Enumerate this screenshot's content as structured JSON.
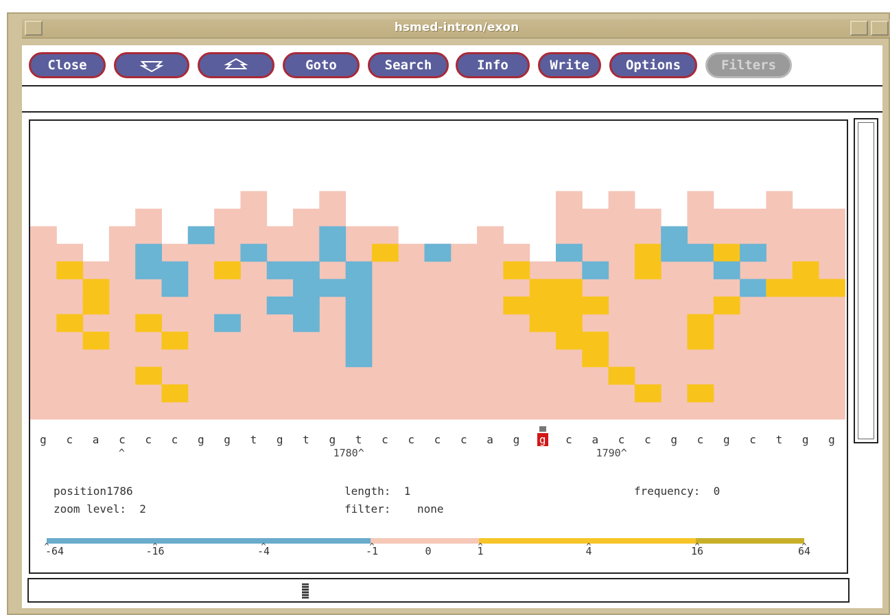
{
  "window": {
    "title": "hsmed-intron/exon"
  },
  "toolbar": {
    "buttons": [
      {
        "label": "Close",
        "icon": null,
        "enabled": true
      },
      {
        "label": "",
        "icon": "scroll-down-icon",
        "enabled": true
      },
      {
        "label": "",
        "icon": "scroll-up-icon",
        "enabled": true
      },
      {
        "label": "Goto",
        "icon": null,
        "enabled": true
      },
      {
        "label": "Search",
        "icon": null,
        "enabled": true
      },
      {
        "label": "Info",
        "icon": null,
        "enabled": true
      },
      {
        "label": "Write",
        "icon": null,
        "enabled": true
      },
      {
        "label": "Options",
        "icon": null,
        "enabled": true
      },
      {
        "label": "Filters",
        "icon": null,
        "enabled": false
      }
    ]
  },
  "sequence": {
    "bases": [
      "g",
      "c",
      "a",
      "c",
      "c",
      "c",
      "g",
      "g",
      "t",
      "g",
      "t",
      "g",
      "t",
      "c",
      "c",
      "c",
      "c",
      "a",
      "g",
      "g",
      "c",
      "a",
      "c",
      "c",
      "g",
      "c",
      "g",
      "c",
      "t",
      "g",
      "g"
    ],
    "selected_index": 19,
    "markers": [
      {
        "index": 3,
        "text": "^"
      },
      {
        "index": 12,
        "text": "1780^"
      },
      {
        "index": 22,
        "text": "1790^"
      }
    ]
  },
  "info": {
    "position_label": "position",
    "position_value": "1786",
    "zoom_label": "zoom level:",
    "zoom_value": "2",
    "length_label": "length:",
    "length_value": "1",
    "filter_label": "filter:",
    "filter_value": "none",
    "frequency_label": "frequency:",
    "frequency_value": "0"
  },
  "colorbar": {
    "ticks": [
      "-64",
      "-16",
      "-4",
      "-1",
      "0",
      "1",
      "4",
      "16",
      "64"
    ],
    "colors": {
      "negative": "#6aaccc",
      "neutral": "#f5c8b8",
      "positive": "#f7c52a",
      "high_positive": "#c8b02a"
    }
  },
  "heatmap": {
    "colors": {
      "neutral": "#f5c5b8",
      "negative": "#6ab4d4",
      "positive": "#f8c41c"
    },
    "column_tops": [
      6,
      7,
      8,
      6,
      5,
      7,
      6,
      5,
      4,
      6,
      5,
      4,
      6,
      6,
      7,
      7,
      7,
      6,
      7,
      8,
      4,
      5,
      4,
      5,
      6,
      4,
      5,
      5,
      4,
      5,
      5
    ],
    "cells": [
      {
        "c": 1,
        "r": 8,
        "v": "pos"
      },
      {
        "c": 2,
        "r": 9,
        "v": "pos"
      },
      {
        "c": 2,
        "r": 10,
        "v": "pos"
      },
      {
        "c": 1,
        "r": 11,
        "v": "pos"
      },
      {
        "c": 2,
        "r": 12,
        "v": "pos"
      },
      {
        "c": 4,
        "r": 7,
        "v": "neg"
      },
      {
        "c": 4,
        "r": 8,
        "v": "neg"
      },
      {
        "c": 5,
        "r": 8,
        "v": "neg"
      },
      {
        "c": 5,
        "r": 9,
        "v": "neg"
      },
      {
        "c": 4,
        "r": 11,
        "v": "pos"
      },
      {
        "c": 5,
        "r": 12,
        "v": "pos"
      },
      {
        "c": 4,
        "r": 14,
        "v": "pos"
      },
      {
        "c": 5,
        "r": 15,
        "v": "pos"
      },
      {
        "c": 6,
        "r": 6,
        "v": "neg"
      },
      {
        "c": 7,
        "r": 8,
        "v": "pos"
      },
      {
        "c": 7,
        "r": 11,
        "v": "neg"
      },
      {
        "c": 8,
        "r": 7,
        "v": "neg"
      },
      {
        "c": 9,
        "r": 8,
        "v": "neg"
      },
      {
        "c": 9,
        "r": 10,
        "v": "neg"
      },
      {
        "c": 10,
        "r": 8,
        "v": "neg"
      },
      {
        "c": 10,
        "r": 9,
        "v": "neg"
      },
      {
        "c": 10,
        "r": 10,
        "v": "neg"
      },
      {
        "c": 10,
        "r": 11,
        "v": "neg"
      },
      {
        "c": 11,
        "r": 6,
        "v": "neg"
      },
      {
        "c": 11,
        "r": 7,
        "v": "neg"
      },
      {
        "c": 11,
        "r": 9,
        "v": "neg"
      },
      {
        "c": 12,
        "r": 8,
        "v": "neg"
      },
      {
        "c": 12,
        "r": 9,
        "v": "neg"
      },
      {
        "c": 12,
        "r": 10,
        "v": "neg"
      },
      {
        "c": 12,
        "r": 11,
        "v": "neg"
      },
      {
        "c": 12,
        "r": 12,
        "v": "neg"
      },
      {
        "c": 12,
        "r": 13,
        "v": "neg"
      },
      {
        "c": 13,
        "r": 7,
        "v": "pos"
      },
      {
        "c": 15,
        "r": 7,
        "v": "neg"
      },
      {
        "c": 18,
        "r": 8,
        "v": "pos"
      },
      {
        "c": 18,
        "r": 10,
        "v": "pos"
      },
      {
        "c": 19,
        "r": 9,
        "v": "pos"
      },
      {
        "c": 19,
        "r": 10,
        "v": "pos"
      },
      {
        "c": 19,
        "r": 11,
        "v": "pos"
      },
      {
        "c": 20,
        "r": 9,
        "v": "pos"
      },
      {
        "c": 20,
        "r": 10,
        "v": "pos"
      },
      {
        "c": 20,
        "r": 11,
        "v": "pos"
      },
      {
        "c": 20,
        "r": 12,
        "v": "pos"
      },
      {
        "c": 20,
        "r": 7,
        "v": "neg"
      },
      {
        "c": 21,
        "r": 8,
        "v": "neg"
      },
      {
        "c": 21,
        "r": 10,
        "v": "pos"
      },
      {
        "c": 21,
        "r": 12,
        "v": "pos"
      },
      {
        "c": 21,
        "r": 13,
        "v": "pos"
      },
      {
        "c": 22,
        "r": 14,
        "v": "pos"
      },
      {
        "c": 23,
        "r": 7,
        "v": "pos"
      },
      {
        "c": 23,
        "r": 8,
        "v": "pos"
      },
      {
        "c": 23,
        "r": 15,
        "v": "pos"
      },
      {
        "c": 24,
        "r": 6,
        "v": "neg"
      },
      {
        "c": 24,
        "r": 7,
        "v": "neg"
      },
      {
        "c": 25,
        "r": 7,
        "v": "neg"
      },
      {
        "c": 25,
        "r": 11,
        "v": "pos"
      },
      {
        "c": 25,
        "r": 12,
        "v": "pos"
      },
      {
        "c": 25,
        "r": 15,
        "v": "pos"
      },
      {
        "c": 26,
        "r": 7,
        "v": "pos"
      },
      {
        "c": 26,
        "r": 8,
        "v": "neg"
      },
      {
        "c": 26,
        "r": 10,
        "v": "pos"
      },
      {
        "c": 27,
        "r": 7,
        "v": "neg"
      },
      {
        "c": 27,
        "r": 9,
        "v": "neg"
      },
      {
        "c": 28,
        "r": 9,
        "v": "pos"
      },
      {
        "c": 29,
        "r": 8,
        "v": "pos"
      },
      {
        "c": 29,
        "r": 9,
        "v": "pos"
      },
      {
        "c": 30,
        "r": 9,
        "v": "pos"
      }
    ]
  }
}
